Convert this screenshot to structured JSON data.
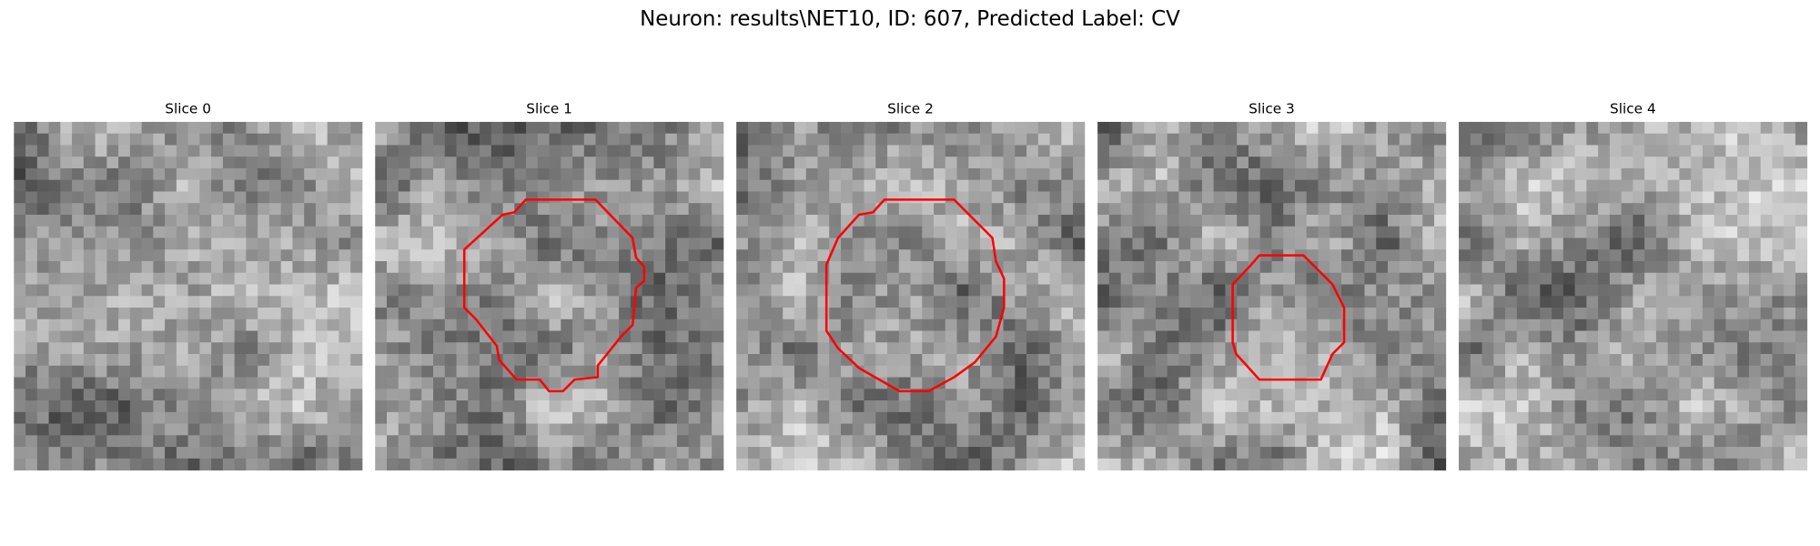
{
  "title": "Neuron: results\\NET10, ID: 607, Predicted Label: CV",
  "panels": [
    {
      "title": "Slice 0"
    },
    {
      "title": "Slice 1"
    },
    {
      "title": "Slice 2"
    },
    {
      "title": "Slice 3"
    },
    {
      "title": "Slice 4"
    }
  ]
}
